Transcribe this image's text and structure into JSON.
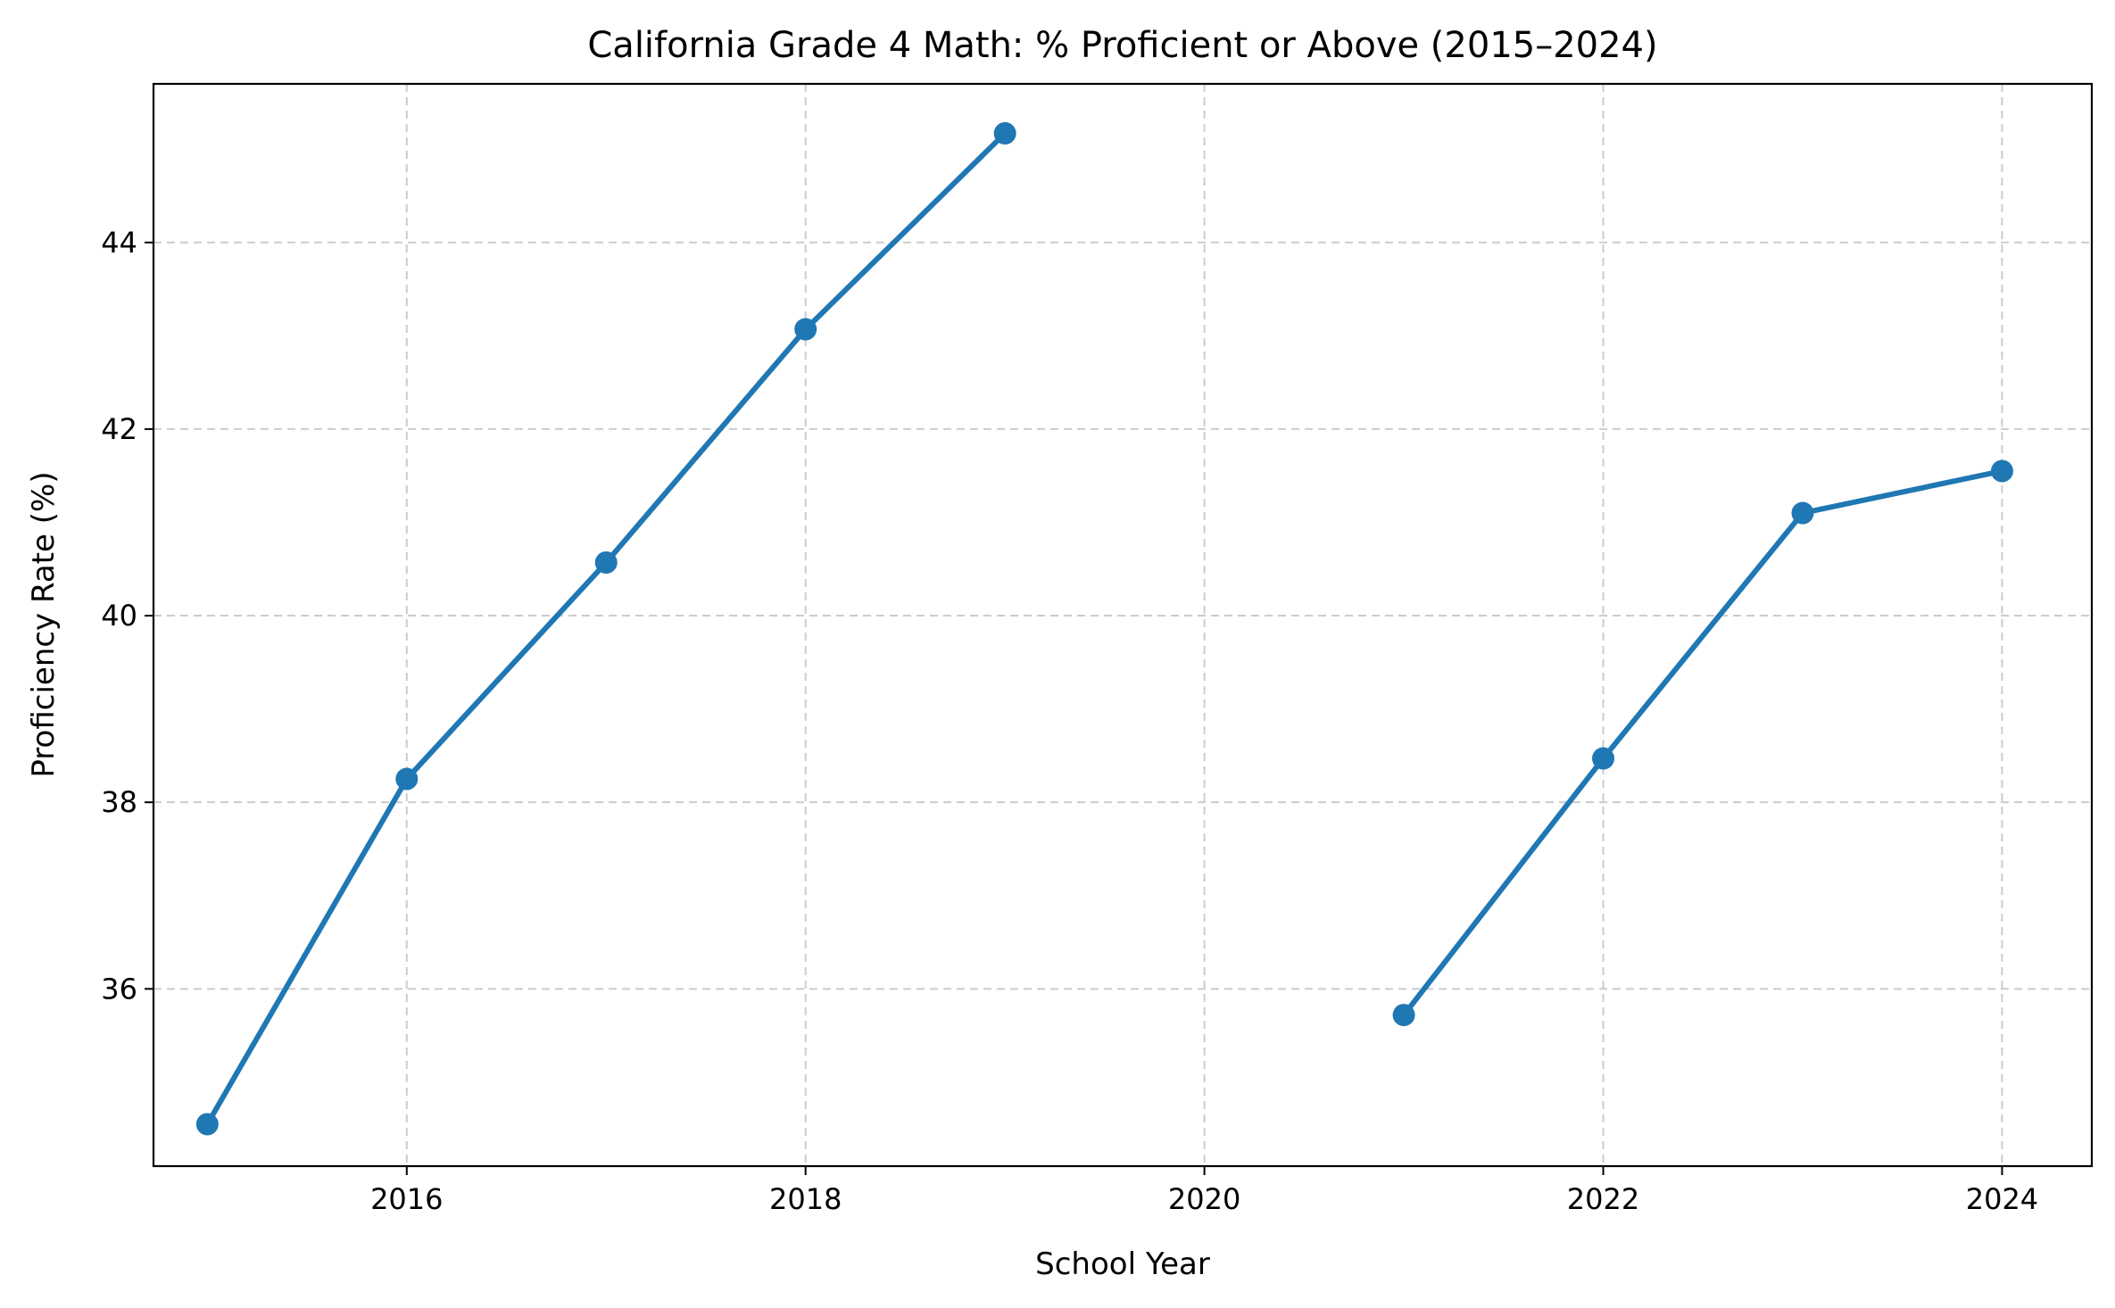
{
  "chart_data": {
    "type": "line",
    "title": "California Grade 4 Math: % Proficient or Above (2015–2024)",
    "xlabel": "School Year",
    "ylabel": "Proficiency Rate (%)",
    "xlim": [
      2014.73,
      2024.45
    ],
    "ylim": [
      34.1,
      45.7
    ],
    "xticks": [
      2016,
      2018,
      2020,
      2022,
      2024
    ],
    "yticks": [
      36,
      38,
      40,
      42,
      44
    ],
    "grid": true,
    "color": "#1f77b4",
    "segments": [
      {
        "x": [
          2015,
          2016,
          2017,
          2018,
          2019
        ],
        "y": [
          34.55,
          38.25,
          40.57,
          43.07,
          45.17
        ]
      },
      {
        "x": [
          2021,
          2022,
          2023,
          2024
        ],
        "y": [
          35.72,
          38.47,
          41.1,
          41.55
        ]
      }
    ]
  }
}
